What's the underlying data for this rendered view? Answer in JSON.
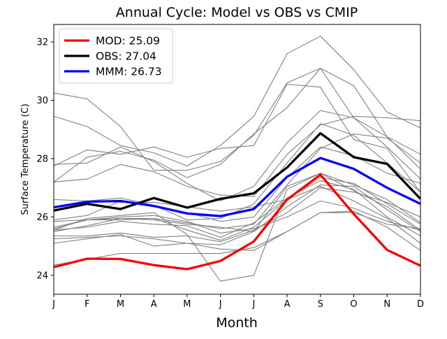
{
  "chart_data": {
    "type": "line",
    "title": "Annual Cycle: Model vs OBS vs CMIP",
    "xlabel": "Month",
    "ylabel": "Surface Temperature (C)",
    "categories": [
      "J",
      "F",
      "M",
      "A",
      "M",
      "J",
      "J",
      "A",
      "S",
      "O",
      "N",
      "D"
    ],
    "ylim": [
      23.35,
      32.6
    ],
    "yticks": [
      24,
      26,
      28,
      30,
      32
    ],
    "grid": false,
    "legend_position": "top-left",
    "legend": [
      {
        "label": "MOD: 25.09",
        "color": "#ff0000"
      },
      {
        "label": "OBS: 27.04",
        "color": "#000000"
      },
      {
        "label": "MMM: 26.73",
        "color": "#0000ff"
      }
    ],
    "ensemble_color": "#808080",
    "ensemble": [
      [
        30.25,
        30.05,
        29.1,
        27.6,
        27.6,
        27.9,
        28.8,
        30.6,
        31.1,
        29.4,
        28.4,
        27.3
      ],
      [
        29.45,
        29.1,
        28.45,
        28.2,
        27.75,
        28.45,
        29.45,
        31.6,
        32.2,
        31.05,
        29.6,
        29.05
      ],
      [
        27.75,
        28.3,
        28.15,
        28.4,
        28.05,
        28.35,
        28.45,
        30.55,
        30.45,
        28.65,
        28.35,
        26.85
      ],
      [
        27.8,
        27.85,
        28.4,
        27.9,
        27.15,
        26.55,
        27.05,
        28.55,
        29.65,
        29.4,
        28.75,
        28.15
      ],
      [
        27.2,
        28.05,
        28.25,
        27.95,
        27.35,
        27.8,
        28.85,
        29.75,
        31.1,
        30.5,
        28.75,
        27.65
      ],
      [
        27.2,
        27.3,
        27.8,
        27.55,
        27.05,
        26.75,
        26.7,
        28.15,
        29.15,
        29.45,
        29.4,
        29.3
      ],
      [
        26.35,
        26.55,
        26.65,
        26.4,
        25.9,
        25.95,
        26.45,
        27.85,
        29.2,
        28.8,
        27.85,
        26.85
      ],
      [
        25.9,
        26.05,
        26.55,
        26.35,
        26.15,
        25.85,
        26.0,
        27.35,
        28.4,
        28.1,
        27.5,
        27.15
      ],
      [
        25.65,
        25.9,
        25.9,
        25.95,
        25.8,
        25.6,
        25.75,
        27.1,
        28.35,
        28.85,
        28.7,
        27.85
      ],
      [
        25.55,
        25.95,
        26.05,
        26.15,
        25.4,
        23.8,
        24.0,
        26.95,
        27.5,
        27.1,
        26.6,
        25.8
      ],
      [
        25.25,
        25.3,
        25.35,
        25.25,
        25.1,
        25.05,
        25.5,
        27.05,
        27.5,
        26.9,
        26.35,
        25.55
      ],
      [
        25.1,
        25.25,
        25.4,
        25.0,
        25.1,
        24.9,
        24.85,
        25.5,
        26.15,
        26.15,
        25.75,
        25.6
      ],
      [
        25.35,
        25.35,
        25.45,
        25.3,
        25.35,
        25.15,
        25.55,
        26.15,
        27.0,
        26.85,
        26.5,
        26.0
      ],
      [
        26.6,
        26.55,
        26.5,
        26.5,
        26.35,
        26.2,
        26.35,
        26.6,
        27.35,
        27.15,
        26.45,
        25.75
      ],
      [
        25.85,
        25.9,
        25.95,
        25.9,
        25.75,
        25.65,
        25.5,
        26.35,
        27.1,
        27.05,
        26.25,
        25.5
      ],
      [
        25.55,
        25.65,
        25.85,
        25.75,
        25.7,
        25.3,
        25.8,
        26.65,
        27.25,
        26.95,
        26.0,
        25.35
      ],
      [
        25.6,
        25.9,
        26.0,
        26.05,
        25.85,
        25.45,
        25.6,
        26.0,
        26.55,
        26.3,
        25.85,
        25.55
      ],
      [
        24.35,
        24.55,
        24.75,
        24.75,
        24.75,
        24.75,
        24.95,
        25.5,
        26.15,
        26.2,
        25.65,
        24.85
      ],
      [
        25.5,
        25.7,
        25.95,
        25.95,
        25.55,
        25.2,
        25.65,
        26.6,
        27.05,
        26.55,
        25.95,
        25.1
      ]
    ],
    "series": [
      {
        "name": "MOD",
        "color": "#ff0000",
        "values": [
          24.28,
          24.57,
          24.56,
          24.35,
          24.21,
          24.49,
          25.16,
          26.6,
          27.45,
          26.1,
          24.87,
          24.33
        ]
      },
      {
        "name": "OBS",
        "color": "#000000",
        "values": [
          26.22,
          26.45,
          26.27,
          26.65,
          26.32,
          26.62,
          26.81,
          27.7,
          28.87,
          28.05,
          27.82,
          26.62
        ]
      },
      {
        "name": "MMM",
        "color": "#0000ff",
        "values": [
          26.33,
          26.52,
          26.55,
          26.38,
          26.12,
          26.03,
          26.27,
          27.38,
          28.02,
          27.65,
          27.0,
          26.45
        ]
      }
    ]
  }
}
